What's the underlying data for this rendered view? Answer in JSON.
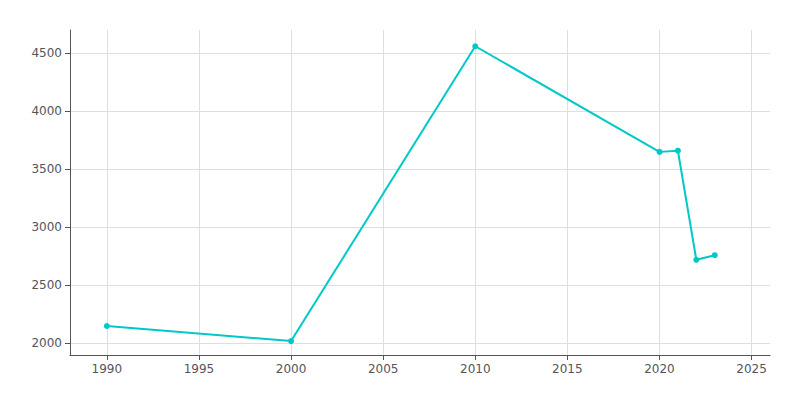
{
  "chart_data": {
    "type": "line",
    "x": [
      1990,
      2000,
      2010,
      2020,
      2021,
      2022,
      2023
    ],
    "values": [
      2150,
      2020,
      4560,
      3650,
      3660,
      2720,
      2760
    ],
    "color": "#00C8C8",
    "marker": "circle",
    "xlim": [
      1988,
      2026
    ],
    "ylim": [
      1900,
      4700
    ],
    "xticks": [
      1990,
      1995,
      2000,
      2005,
      2010,
      2015,
      2020,
      2025
    ],
    "yticks": [
      2000,
      2500,
      3000,
      3500,
      4000,
      4500
    ],
    "grid": true
  }
}
